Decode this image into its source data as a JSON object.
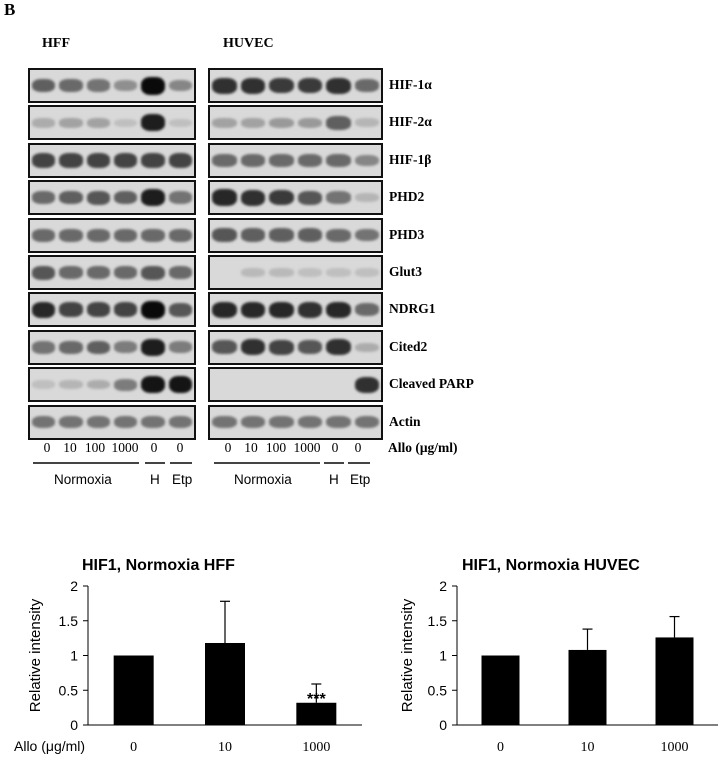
{
  "panel_label": "B",
  "blot": {
    "cells": [
      "HFF",
      "HUVEC"
    ],
    "rows": [
      "HIF-1α",
      "HIF-2α",
      "HIF-1β",
      "PHD2",
      "PHD3",
      "Glut3",
      "NDRG1",
      "Cited2",
      "Cleaved PARP",
      "Actin"
    ],
    "lanes": [
      "0",
      "10",
      "100",
      "1000",
      "0",
      "0"
    ],
    "treatment_label": "Allo (μg/ml)",
    "groups": [
      "Normoxia",
      "H",
      "Etp"
    ]
  },
  "chart_data": [
    {
      "type": "bar",
      "title": "HIF1, Normoxia HFF",
      "xlabel": "",
      "ylabel": "Relative intensity",
      "x_axis_title": "Allo (μg/ml)",
      "categories": [
        "0",
        "10",
        "1000"
      ],
      "values": [
        1.0,
        1.18,
        0.32
      ],
      "errors": [
        0.0,
        0.6,
        0.27
      ],
      "annotations": [
        "",
        "",
        "***"
      ],
      "ylim": [
        0,
        2
      ],
      "yticks": [
        "0",
        "0.5",
        "1",
        "1.5",
        "2"
      ],
      "bar_color": "#000000"
    },
    {
      "type": "bar",
      "title": "HIF1, Normoxia HUVEC",
      "xlabel": "",
      "ylabel": "Relative intensity",
      "categories": [
        "0",
        "10",
        "1000"
      ],
      "values": [
        1.0,
        1.08,
        1.26
      ],
      "errors": [
        0.0,
        0.3,
        0.3
      ],
      "annotations": [
        "",
        "",
        ""
      ],
      "ylim": [
        0,
        2
      ],
      "yticks": [
        "0",
        "0.5",
        "1",
        "1.5",
        "2"
      ],
      "bar_color": "#000000"
    }
  ]
}
